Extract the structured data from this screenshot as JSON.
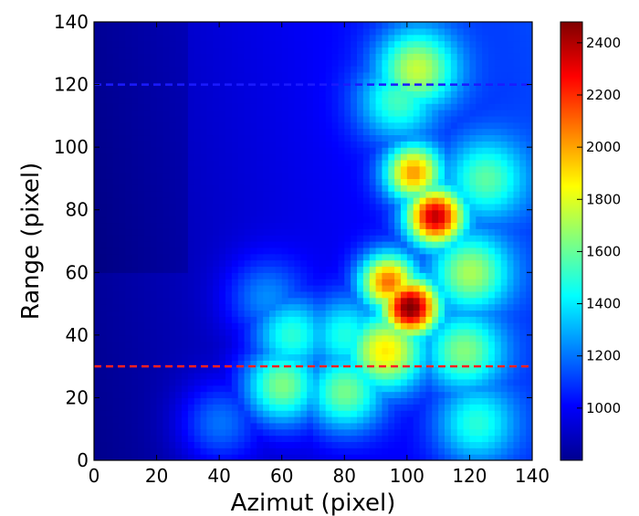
{
  "chart_data": {
    "type": "heatmap",
    "title": "",
    "xlabel": "Azimut (pixel)",
    "ylabel": "Range (pixel)",
    "xlim": [
      0,
      140
    ],
    "ylim": [
      0,
      140
    ],
    "x_ticks": [
      "0",
      "20",
      "40",
      "60",
      "80",
      "100",
      "120",
      "140"
    ],
    "y_ticks": [
      "0",
      "20",
      "40",
      "60",
      "80",
      "100",
      "120",
      "140"
    ],
    "colormap": "jet",
    "colorbar": {
      "range": [
        800,
        2480
      ],
      "ticks": [
        "1000",
        "1200",
        "1400",
        "1600",
        "1800",
        "2000",
        "2200",
        "2400"
      ]
    },
    "background_value": 1000,
    "features": [
      {
        "x": 101,
        "y": 49,
        "value": 2480
      },
      {
        "x": 109,
        "y": 78,
        "value": 2330
      },
      {
        "x": 102,
        "y": 92,
        "value": 1980
      },
      {
        "x": 94,
        "y": 57,
        "value": 2080
      },
      {
        "x": 93,
        "y": 35,
        "value": 1880
      },
      {
        "x": 103,
        "y": 125,
        "value": 1700
      },
      {
        "x": 97,
        "y": 115,
        "value": 1500
      },
      {
        "x": 60,
        "y": 24,
        "value": 1700
      },
      {
        "x": 63,
        "y": 40,
        "value": 1550
      },
      {
        "x": 80,
        "y": 22,
        "value": 1650
      },
      {
        "x": 80,
        "y": 40,
        "value": 1500
      },
      {
        "x": 118,
        "y": 35,
        "value": 1600
      },
      {
        "x": 120,
        "y": 60,
        "value": 1650
      },
      {
        "x": 125,
        "y": 90,
        "value": 1500
      },
      {
        "x": 122,
        "y": 12,
        "value": 1450
      },
      {
        "x": 40,
        "y": 12,
        "value": 1300
      },
      {
        "x": 55,
        "y": 52,
        "value": 1300
      }
    ],
    "reference_lines": [
      {
        "orientation": "horizontal",
        "y": 120,
        "color": "#1a1aff",
        "style": "dashed"
      },
      {
        "orientation": "horizontal",
        "y": 30,
        "color": "#ff2020",
        "style": "dashed"
      }
    ]
  }
}
